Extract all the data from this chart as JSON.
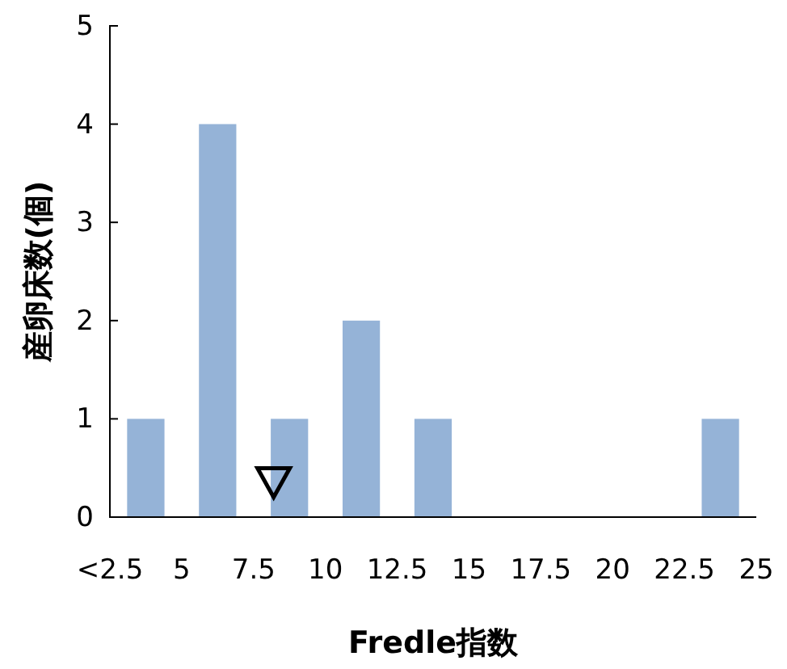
{
  "chart_data": {
    "type": "bar",
    "xlabel": "Fredle指数",
    "ylabel": "産卵床数(個)",
    "x": [
      3.75,
      6.25,
      8.75,
      11.25,
      13.75,
      16.25,
      18.75,
      21.25,
      23.75
    ],
    "values": [
      1,
      4,
      1,
      2,
      1,
      0,
      0,
      0,
      1
    ],
    "color": "#95b3d7",
    "xlim": [
      2.5,
      25
    ],
    "xticks": [
      {
        "value": 2.5,
        "label": "<2.5"
      },
      5,
      7.5,
      10,
      12.5,
      15,
      17.5,
      20,
      22.5,
      25
    ],
    "ylim": [
      0,
      5
    ],
    "yticks": [
      0,
      1,
      2,
      3,
      4,
      5
    ],
    "marker": "triangle",
    "series": [
      {
        "type": "scatter",
        "x": [
          8.2
        ],
        "values": [
          0.35
        ],
        "color": "#000000"
      }
    ]
  }
}
